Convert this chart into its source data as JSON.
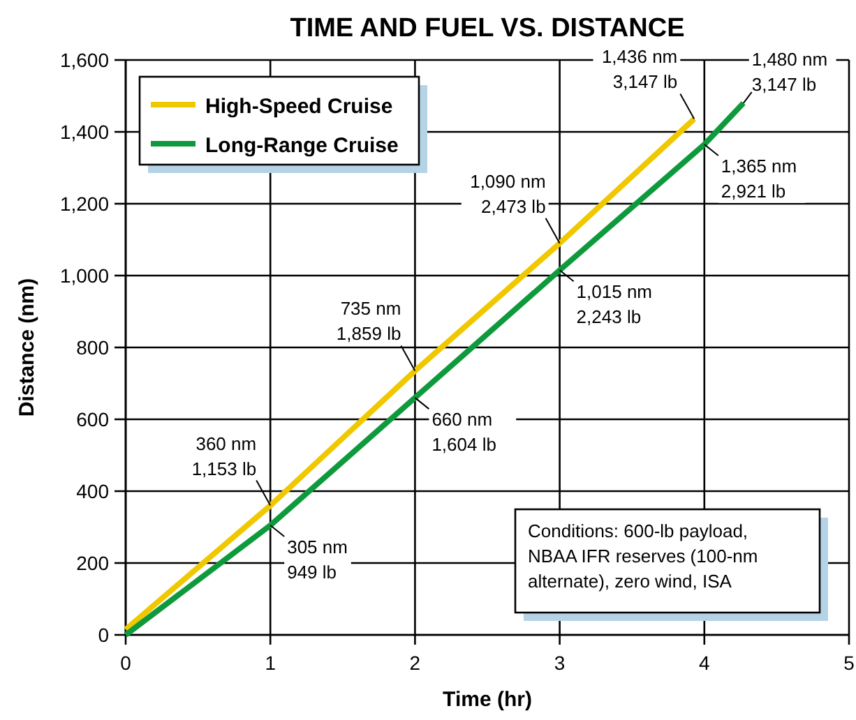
{
  "chart_data": {
    "type": "line",
    "title": "TIME AND FUEL VS. DISTANCE",
    "xlabel": "Time (hr)",
    "ylabel": "Distance (nm)",
    "xlim": [
      0,
      5
    ],
    "xticks": [
      0,
      1,
      2,
      3,
      4,
      5
    ],
    "ylim": [
      0,
      1600
    ],
    "yticks": [
      {
        "value": 0,
        "label": "0"
      },
      {
        "value": 200,
        "label": "200"
      },
      {
        "value": 400,
        "label": "400"
      },
      {
        "value": 600,
        "label": "600"
      },
      {
        "value": 800,
        "label": "800"
      },
      {
        "value": 1000,
        "label": "1,000"
      },
      {
        "value": 1200,
        "label": "1,200"
      },
      {
        "value": 1400,
        "label": "1,400"
      },
      {
        "value": 1600,
        "label": "1,600"
      }
    ],
    "grid": true,
    "legend": "top left",
    "marker": "none",
    "series": [
      {
        "name": "High-Speed Cruise",
        "color": "#f0c800",
        "x": [
          0,
          1,
          2,
          3,
          3.93
        ],
        "values": [
          15,
          360,
          735,
          1090,
          1436
        ]
      },
      {
        "name": "Long-Range Cruise",
        "color": "#0e9a3c",
        "x": [
          0,
          1,
          2,
          3,
          4,
          4.27
        ],
        "values": [
          0,
          305,
          660,
          1015,
          1365,
          1480
        ]
      }
    ],
    "annotations": [
      {
        "text": "360 nm\n1,153 lb",
        "x": 1,
        "y": 360
      },
      {
        "text": "305 nm\n949 lb",
        "x": 1,
        "y": 305
      },
      {
        "text": "735 nm\n1,859 lb",
        "x": 2,
        "y": 735
      },
      {
        "text": "660 nm\n1,604 lb",
        "x": 2,
        "y": 660
      },
      {
        "text": "1,090 nm\n2,473 lb",
        "x": 3,
        "y": 1090
      },
      {
        "text": "1,015 nm\n2,243 lb",
        "x": 3,
        "y": 1015
      },
      {
        "text": "1,436 nm\n3,147 lb",
        "x": 3.93,
        "y": 1436
      },
      {
        "text": "1,365 nm\n2,921 lb",
        "x": 4,
        "y": 1365
      },
      {
        "text": "1,480 nm\n3,147 lb",
        "x": 4.27,
        "y": 1480
      },
      "Conditions: 600-lb payload,\nNBAA IFR reserves (100-nm\nalternate), zero wind, ISA"
    ]
  }
}
